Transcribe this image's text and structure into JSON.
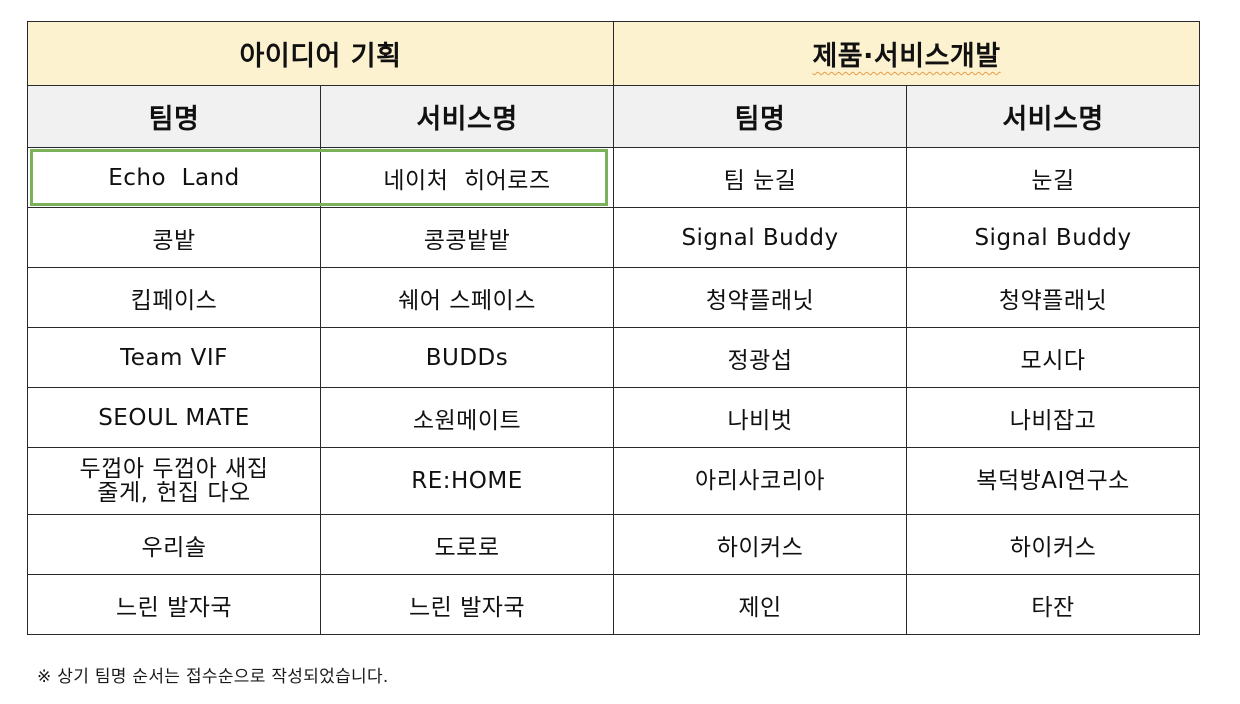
{
  "groups": {
    "idea": "아이디어 기획",
    "product": "제품·서비스개발"
  },
  "headers": {
    "team": "팀명",
    "service": "서비스명"
  },
  "rows": [
    {
      "idea_team": "Echo  Land",
      "idea_service": "네이처  히어로즈",
      "prod_team": "팀 눈길",
      "prod_service": "눈길"
    },
    {
      "idea_team": "콩밭",
      "idea_service": "콩콩밭밭",
      "prod_team": "Signal Buddy",
      "prod_service": "Signal Buddy"
    },
    {
      "idea_team": "킵페이스",
      "idea_service": "쉐어 스페이스",
      "prod_team": "청약플래닛",
      "prod_service": "청약플래닛"
    },
    {
      "idea_team": "Team VIF",
      "idea_service": "BUDDs",
      "prod_team": "정광섭",
      "prod_service": "모시다"
    },
    {
      "idea_team": "SEOUL MATE",
      "idea_service": "소원메이트",
      "prod_team": "나비벗",
      "prod_service": "나비잡고"
    },
    {
      "idea_team": "두껍아 두껍아 새집\n줄게, 헌집 다오",
      "idea_service": "RE:HOME",
      "prod_team": "아리사코리아",
      "prod_service": "복덕방AI연구소"
    },
    {
      "idea_team": "우리솔",
      "idea_service": "도로로",
      "prod_team": "하이커스",
      "prod_service": "하이커스"
    },
    {
      "idea_team": "느린 발자국",
      "idea_service": "느린 발자국",
      "prod_team": "제인",
      "prod_service": "타잔"
    }
  ],
  "footnote": "※ 상기 팀명 순서는 접수순으로 작성되었습니다.",
  "colors": {
    "group_bg": "#fdf2d0",
    "header_bg": "#f1f1f1",
    "highlight": "#7bb15a"
  }
}
